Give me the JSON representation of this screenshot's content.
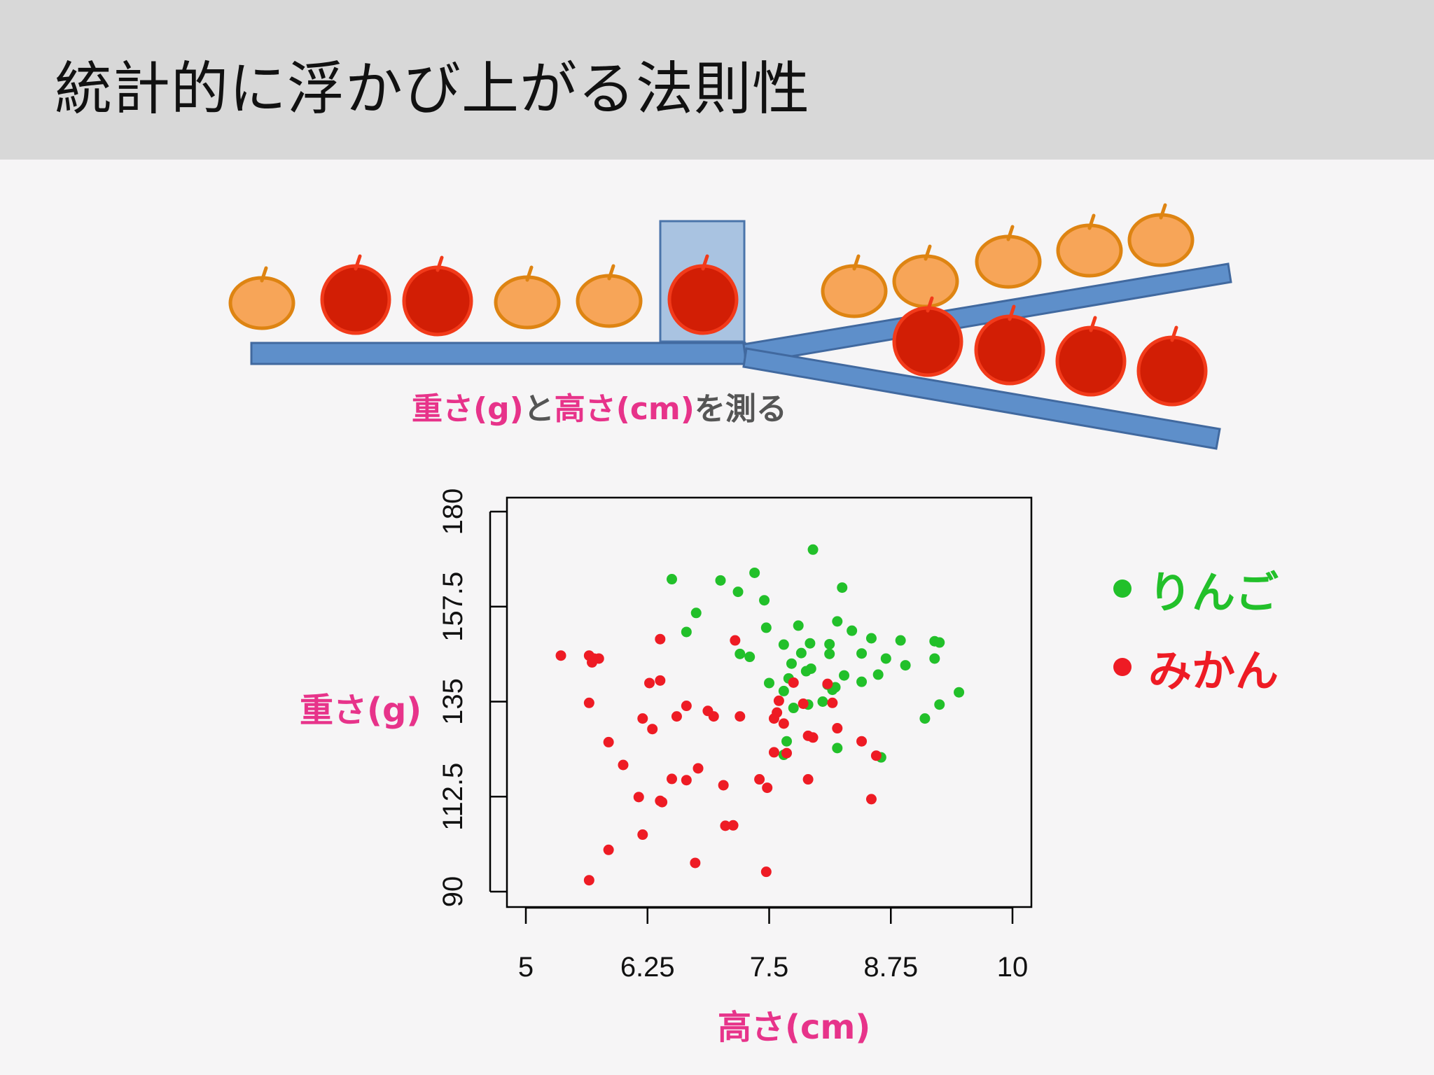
{
  "slide": {
    "title": "統計的に浮かび上がる法則性"
  },
  "caption": {
    "weight": "重さ(g)",
    "to": "と",
    "height": "高さ(cm)",
    "measure": "を測る"
  },
  "colors": {
    "apple": "#22c02a",
    "mandarin": "#ee1b24",
    "orange_fruit": "#f7a558",
    "red_fruit": "#d21e05",
    "conveyor": "#5e8fca",
    "accent_pink": "#e7338a"
  },
  "chart_data": {
    "type": "scatter",
    "xlabel": "高さ(cm)",
    "ylabel": "重さ(g)",
    "xlim": [
      5,
      10
    ],
    "ylim": [
      90,
      180
    ],
    "xticks": [
      5,
      6.25,
      7.5,
      8.75,
      10
    ],
    "xtick_labels": [
      "5",
      "6.25",
      "7.5",
      "8.75",
      "10"
    ],
    "yticks": [
      90,
      112.5,
      135,
      157.5,
      180
    ],
    "ytick_labels": [
      "90",
      "112.5",
      "135",
      "157.5",
      "180"
    ],
    "legend_position": "right",
    "series": [
      {
        "name": "りんご",
        "color": "#22c02a",
        "points": [
          [
            7.95,
            171
          ],
          [
            6.5,
            164
          ],
          [
            7.35,
            165.5
          ],
          [
            7.0,
            163.7
          ],
          [
            7.18,
            161
          ],
          [
            8.25,
            162
          ],
          [
            7.45,
            159
          ],
          [
            6.75,
            156
          ],
          [
            7.8,
            153
          ],
          [
            8.2,
            154
          ],
          [
            7.47,
            152.5
          ],
          [
            8.35,
            151.8
          ],
          [
            6.65,
            151.5
          ],
          [
            8.55,
            150
          ],
          [
            8.85,
            149.5
          ],
          [
            9.2,
            149.3
          ],
          [
            9.25,
            149
          ],
          [
            7.65,
            148.5
          ],
          [
            7.92,
            148.8
          ],
          [
            8.12,
            148.6
          ],
          [
            7.83,
            146.5
          ],
          [
            8.12,
            146.3
          ],
          [
            8.45,
            146.4
          ],
          [
            7.2,
            146.3
          ],
          [
            7.3,
            145.6
          ],
          [
            8.7,
            145.2
          ],
          [
            9.2,
            145.2
          ],
          [
            7.73,
            144
          ],
          [
            8.9,
            143.6
          ],
          [
            7.88,
            142.2
          ],
          [
            7.93,
            142.8
          ],
          [
            8.27,
            141.2
          ],
          [
            8.62,
            141.4
          ],
          [
            7.7,
            140.5
          ],
          [
            7.5,
            139.4
          ],
          [
            8.45,
            139.7
          ],
          [
            8.1,
            139
          ],
          [
            8.18,
            138.4
          ],
          [
            8.15,
            137.8
          ],
          [
            7.65,
            137.5
          ],
          [
            9.45,
            137.2
          ],
          [
            8.05,
            135
          ],
          [
            7.9,
            134.3
          ],
          [
            9.25,
            134.3
          ],
          [
            9.1,
            131
          ],
          [
            7.68,
            125.6
          ],
          [
            8.2,
            124
          ],
          [
            8.65,
            121.8
          ],
          [
            7.65,
            122.4
          ],
          [
            7.75,
            133.5
          ]
        ]
      },
      {
        "name": "みかん",
        "color": "#ee1b24",
        "points": [
          [
            5.36,
            145.9
          ],
          [
            5.65,
            145.9
          ],
          [
            5.7,
            145.2
          ],
          [
            5.75,
            145.2
          ],
          [
            5.68,
            144.3
          ],
          [
            6.38,
            140
          ],
          [
            6.27,
            139.4
          ],
          [
            7.15,
            149.5
          ],
          [
            6.38,
            149.8
          ],
          [
            5.65,
            134.7
          ],
          [
            6.55,
            131.5
          ],
          [
            6.93,
            131.5
          ],
          [
            6.87,
            132.8
          ],
          [
            6.65,
            134
          ],
          [
            6.2,
            131
          ],
          [
            6.3,
            128.5
          ],
          [
            7.2,
            131.5
          ],
          [
            5.85,
            125.4
          ],
          [
            6.0,
            120
          ],
          [
            7.75,
            139.5
          ],
          [
            7.6,
            135.2
          ],
          [
            7.85,
            134.5
          ],
          [
            7.58,
            132.4
          ],
          [
            7.55,
            131
          ],
          [
            7.65,
            129.8
          ],
          [
            8.15,
            134.7
          ],
          [
            8.1,
            139.2
          ],
          [
            8.2,
            128.7
          ],
          [
            7.9,
            126.9
          ],
          [
            7.95,
            126.5
          ],
          [
            8.45,
            125.6
          ],
          [
            8.6,
            122.2
          ],
          [
            7.68,
            122.8
          ],
          [
            7.55,
            123
          ],
          [
            7.9,
            116.6
          ],
          [
            6.5,
            116.7
          ],
          [
            6.65,
            116.4
          ],
          [
            6.77,
            119.2
          ],
          [
            7.03,
            115.2
          ],
          [
            7.4,
            116.6
          ],
          [
            7.48,
            114.6
          ],
          [
            6.16,
            112.4
          ],
          [
            6.38,
            111.5
          ],
          [
            6.4,
            111.2
          ],
          [
            8.55,
            111.9
          ],
          [
            7.05,
            105.6
          ],
          [
            7.13,
            105.7
          ],
          [
            6.2,
            103.5
          ],
          [
            5.85,
            99.9
          ],
          [
            6.74,
            96.8
          ],
          [
            7.47,
            94.7
          ],
          [
            5.65,
            92.7
          ]
        ]
      }
    ]
  }
}
